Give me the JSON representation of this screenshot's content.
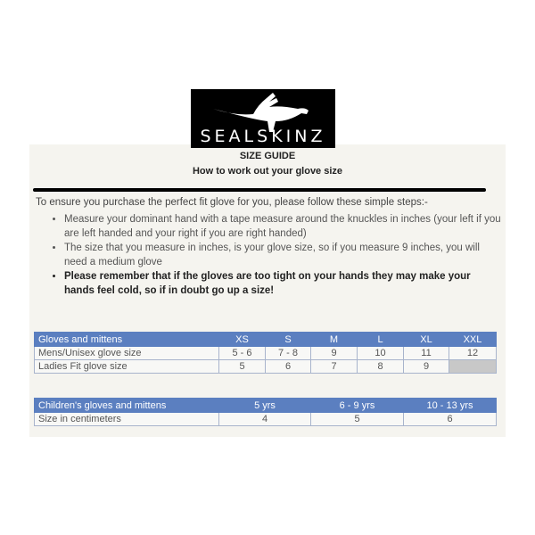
{
  "logo": {
    "text": "SEALSKINZ"
  },
  "header": {
    "title": "SIZE GUIDE",
    "subtitle": "How to work out your glove size"
  },
  "intro": "To ensure you purchase the perfect fit glove for you, please follow these simple steps:-",
  "steps": [
    "Measure your dominant hand with a tape measure around the knuckles in inches (your left if you are left handed and your right if you are right handed)",
    "The size that you measure in inches, is your glove size, so if you measure 9 inches, you will need a medium glove",
    "Please remember that if the gloves are too tight on your hands they may make your hands feel cold, so if in doubt go up a size!"
  ],
  "adult_table": {
    "headers": [
      "Gloves and mittens",
      "XS",
      "S",
      "M",
      "L",
      "XL",
      "XXL"
    ],
    "rows": [
      [
        "Mens/Unisex glove size",
        "5 - 6",
        "7 - 8",
        "9",
        "10",
        "11",
        "12"
      ],
      [
        "Ladies Fit glove size",
        "5",
        "6",
        "7",
        "8",
        "9",
        ""
      ]
    ]
  },
  "child_table": {
    "headers": [
      "Children's gloves and mittens",
      "5 yrs",
      "6 - 9 yrs",
      "10 - 13 yrs"
    ],
    "rows": [
      [
        "Size in centimeters",
        "4",
        "5",
        "6"
      ]
    ]
  },
  "colors": {
    "header_blue": "#5b7fc0",
    "panel": "#f5f4ef"
  }
}
